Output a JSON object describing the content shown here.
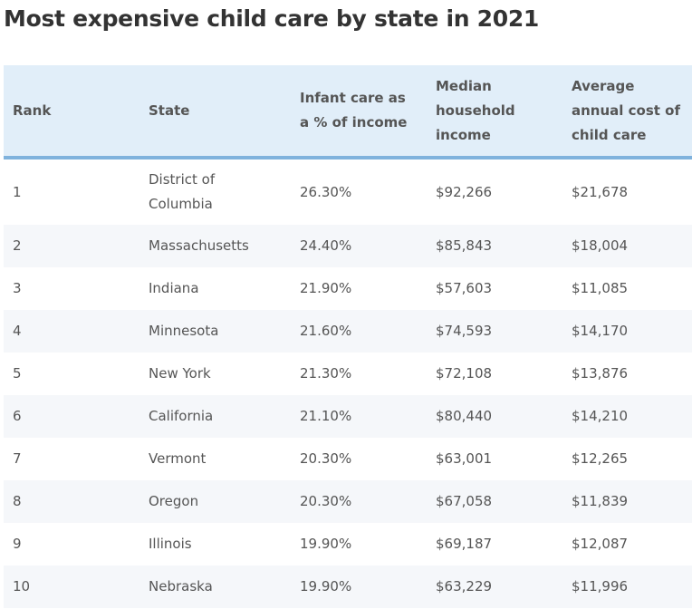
{
  "title": "Most expensive child care by state in 2021",
  "columns": {
    "rank": "Rank",
    "state": "State",
    "infant_pct": "Infant care as a % of income",
    "median_income": "Median household income",
    "avg_cost": "Average annual cost of child care"
  },
  "rows": [
    {
      "rank": "1",
      "state": "District of Columbia",
      "infant_pct": "26.30%",
      "median_income": "$92,266",
      "avg_cost": "$21,678"
    },
    {
      "rank": "2",
      "state": "Massachusetts",
      "infant_pct": "24.40%",
      "median_income": "$85,843",
      "avg_cost": "$18,004"
    },
    {
      "rank": "3",
      "state": "Indiana",
      "infant_pct": "21.90%",
      "median_income": "$57,603",
      "avg_cost": "$11,085"
    },
    {
      "rank": "4",
      "state": "Minnesota",
      "infant_pct": "21.60%",
      "median_income": "$74,593",
      "avg_cost": "$14,170"
    },
    {
      "rank": "5",
      "state": "New York",
      "infant_pct": "21.30%",
      "median_income": "$72,108",
      "avg_cost": "$13,876"
    },
    {
      "rank": "6",
      "state": "California",
      "infant_pct": "21.10%",
      "median_income": "$80,440",
      "avg_cost": "$14,210"
    },
    {
      "rank": "7",
      "state": "Vermont",
      "infant_pct": "20.30%",
      "median_income": "$63,001",
      "avg_cost": "$12,265"
    },
    {
      "rank": "8",
      "state": "Oregon",
      "infant_pct": "20.30%",
      "median_income": "$67,058",
      "avg_cost": "$11,839"
    },
    {
      "rank": "9",
      "state": "Illinois",
      "infant_pct": "19.90%",
      "median_income": "$69,187",
      "avg_cost": "$12,087"
    },
    {
      "rank": "10",
      "state": "Nebraska",
      "infant_pct": "19.90%",
      "median_income": "$63,229",
      "avg_cost": "$11,996"
    }
  ]
}
